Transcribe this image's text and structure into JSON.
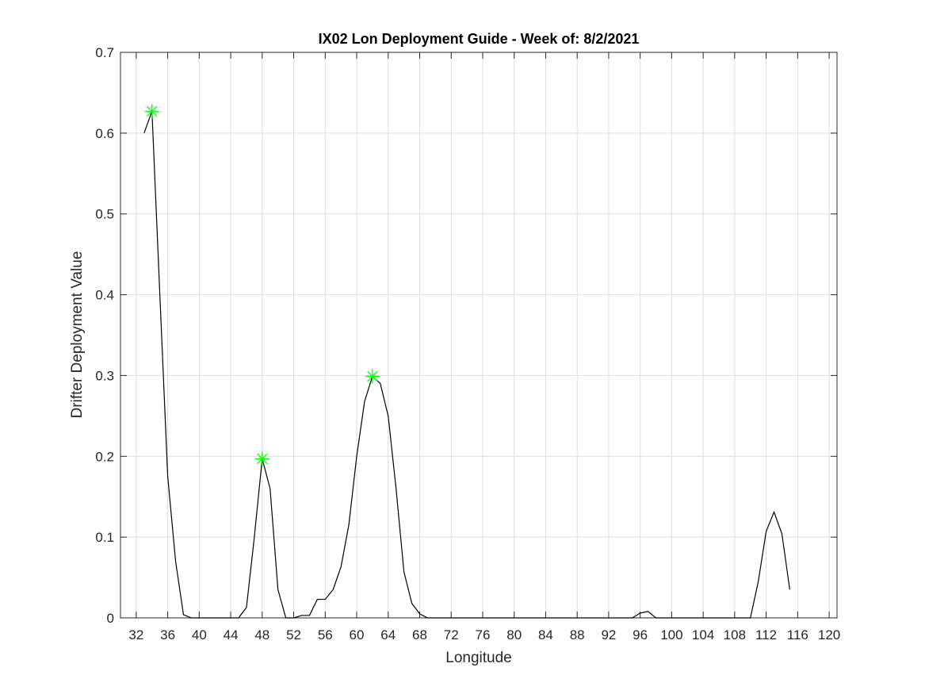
{
  "chart_data": {
    "type": "line",
    "title": "IX02 Lon Deployment Guide - Week of: 8/2/2021",
    "xlabel": "Longitude",
    "ylabel": "Drifter Deployment Value",
    "x": [
      33,
      34,
      35,
      36,
      37,
      38,
      39,
      40,
      41,
      42,
      43,
      44,
      45,
      46,
      47,
      48,
      49,
      50,
      51,
      52,
      53,
      54,
      55,
      56,
      57,
      58,
      59,
      60,
      61,
      62,
      63,
      64,
      65,
      66,
      67,
      68,
      69,
      70,
      71,
      72,
      73,
      74,
      75,
      76,
      77,
      78,
      79,
      80,
      81,
      82,
      83,
      84,
      85,
      86,
      87,
      88,
      89,
      90,
      91,
      92,
      93,
      94,
      95,
      96,
      97,
      98,
      99,
      100,
      101,
      102,
      103,
      104,
      105,
      106,
      107,
      108,
      109,
      110,
      111,
      112,
      113,
      114,
      115
    ],
    "series": [
      {
        "color": "#000000",
        "values": [
          0.6,
          0.627,
          0.4,
          0.175,
          0.07,
          0.004,
          0,
          0,
          0,
          0,
          0,
          0,
          0,
          0.013,
          0.1,
          0.197,
          0.16,
          0.035,
          0,
          0,
          0.003,
          0.003,
          0.023,
          0.023,
          0.035,
          0.063,
          0.115,
          0.2,
          0.268,
          0.299,
          0.29,
          0.25,
          0.16,
          0.057,
          0.018,
          0.005,
          0,
          0,
          0,
          0,
          0,
          0,
          0,
          0,
          0,
          0,
          0,
          0,
          0,
          0,
          0,
          0,
          0,
          0,
          0,
          0,
          0,
          0,
          0,
          0,
          0,
          0,
          0,
          0.006,
          0.008,
          0,
          0,
          0,
          0,
          0,
          0,
          0,
          0,
          0,
          0,
          0,
          0,
          0,
          0.045,
          0.107,
          0.131,
          0.104,
          0.035
        ]
      }
    ],
    "peaks": {
      "color": "#00ff00",
      "x": [
        34,
        48,
        62
      ],
      "values": [
        0.627,
        0.197,
        0.299
      ]
    },
    "xlim": [
      30,
      121
    ],
    "ylim": [
      0,
      0.7
    ],
    "xticks": [
      32,
      36,
      40,
      44,
      48,
      52,
      56,
      60,
      64,
      68,
      72,
      76,
      80,
      84,
      88,
      92,
      96,
      100,
      104,
      108,
      112,
      116,
      120
    ],
    "yticks": [
      0,
      0.1,
      0.2,
      0.3,
      0.4,
      0.5,
      0.6,
      0.7
    ],
    "grid": true
  }
}
